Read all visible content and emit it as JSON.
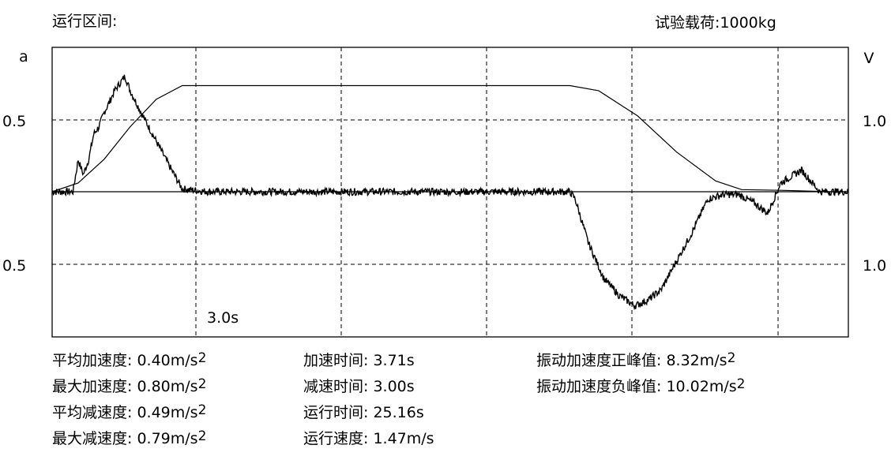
{
  "header": {
    "interval_label": "运行区间:",
    "load_label": "试验载荷:1000kg"
  },
  "chart_data": {
    "type": "line",
    "left_axis_label": "a",
    "right_axis_label": "V",
    "left_ticks": [
      "0.5",
      "0.5"
    ],
    "right_ticks": [
      "1.0",
      "1.0"
    ],
    "marker_label": "3.0s",
    "grid": true,
    "series": [
      {
        "key": "acceleration",
        "x": [
          0,
          0.8,
          1.0,
          1.2,
          1.4,
          1.6,
          1.8,
          2.0,
          2.2,
          2.4,
          2.6,
          2.8,
          3.0,
          3.5,
          4.0,
          4.5,
          5.0,
          6,
          8,
          10,
          12,
          14,
          16,
          18,
          19.9,
          20.1,
          20.6,
          21.2,
          21.8,
          22.4,
          22.9,
          23.4,
          24.0,
          24.6,
          25.2,
          25.8,
          26.4,
          27.0,
          27.5,
          28.0,
          28.8,
          29.5,
          30.0,
          30.6
        ],
        "values": [
          0,
          0,
          0.22,
          0.12,
          0.22,
          0.4,
          0.45,
          0.55,
          0.62,
          0.7,
          0.75,
          0.8,
          0.7,
          0.52,
          0.35,
          0.18,
          0.02,
          0.0,
          0.0,
          0.0,
          0.0,
          0.0,
          0.0,
          0.0,
          0.0,
          -0.05,
          -0.35,
          -0.6,
          -0.72,
          -0.79,
          -0.75,
          -0.68,
          -0.48,
          -0.28,
          -0.05,
          -0.02,
          -0.02,
          -0.08,
          -0.15,
          0.06,
          0.15,
          0.0,
          0.0,
          0.0
        ]
      },
      {
        "key": "speed",
        "x": [
          0,
          1,
          2,
          3,
          4,
          5,
          7.5,
          10,
          12.5,
          15,
          17.5,
          19.9,
          21,
          22.5,
          24,
          25.5,
          26.5,
          28,
          30,
          30.6
        ],
        "values": [
          0,
          0.12,
          0.45,
          0.9,
          1.28,
          1.47,
          1.47,
          1.47,
          1.47,
          1.47,
          1.47,
          1.47,
          1.4,
          1.05,
          0.55,
          0.15,
          0.03,
          0.02,
          0,
          0
        ]
      }
    ],
    "x_range": [
      0,
      30.6
    ],
    "acc_range": [
      -1.0,
      1.0
    ],
    "speed_range": [
      -2.0,
      2.0
    ]
  },
  "stats": {
    "col1": [
      {
        "label": "平均加速度:",
        "value": "0.40m/s",
        "sup": "2"
      },
      {
        "label": "最大加速度:",
        "value": "0.80m/s",
        "sup": "2"
      },
      {
        "label": "平均减速度:",
        "value": "0.49m/s",
        "sup": "2"
      },
      {
        "label": "最大减速度:",
        "value": "0.79m/s",
        "sup": "2"
      }
    ],
    "col2": [
      {
        "label": "加速时间:",
        "value": "3.71s"
      },
      {
        "label": "减速时间:",
        "value": "3.00s"
      },
      {
        "label": "运行时间:",
        "value": "25.16s"
      },
      {
        "label": "运行速度:",
        "value": "1.47m/s"
      }
    ],
    "col3": [
      {
        "label": "振动加速度正峰值:",
        "value": "8.32m/s",
        "sup": "2"
      },
      {
        "label": "振动加速度负峰值:",
        "value": "10.02m/s",
        "sup": "2"
      }
    ]
  }
}
